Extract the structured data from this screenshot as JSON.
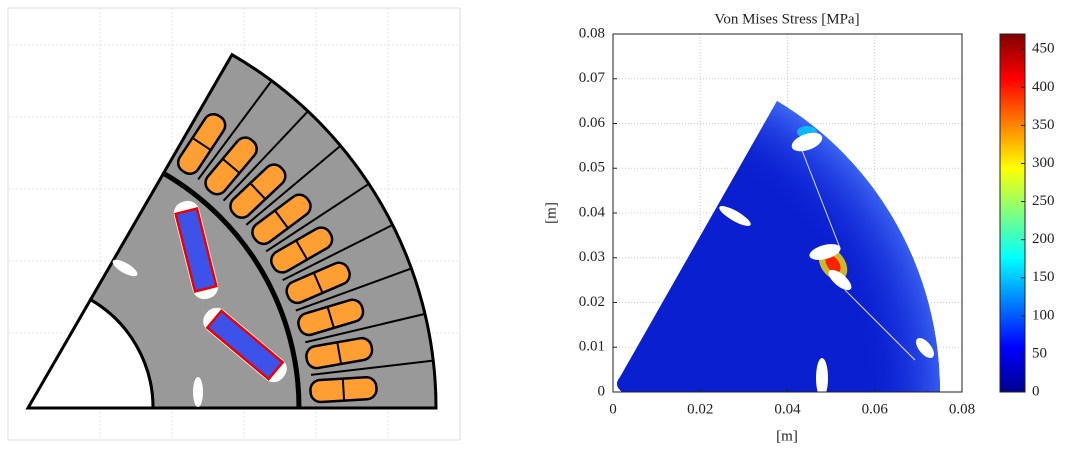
{
  "chart_data": {
    "type": "heatmap",
    "title": "Von Mises Stress [MPa]",
    "x_label": "[m]",
    "y_label": "[m]",
    "xlim": [
      0,
      0.08
    ],
    "xticks": [
      0,
      0.02,
      0.04,
      0.06,
      0.08
    ],
    "ylim": [
      0,
      0.08
    ],
    "yticks": [
      0,
      0.01,
      0.02,
      0.03,
      0.04,
      0.05,
      0.06,
      0.07,
      0.08
    ],
    "grid": true,
    "colormap": "jet",
    "clim": [
      0,
      470
    ],
    "cticks": [
      0,
      50,
      100,
      150,
      200,
      250,
      300,
      350,
      400,
      450
    ]
  }
}
